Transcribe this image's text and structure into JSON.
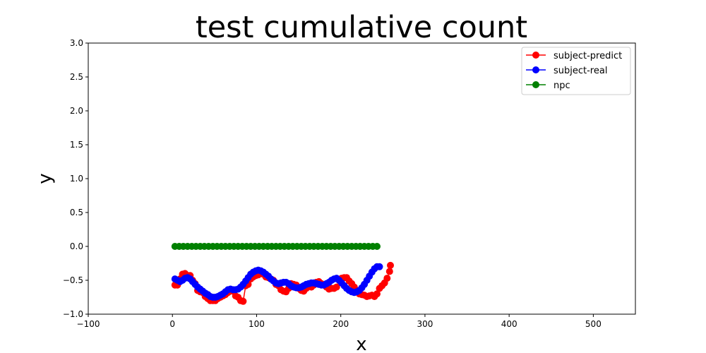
{
  "chart_data": {
    "type": "line",
    "title": "test cumulative count",
    "xlabel": "x",
    "ylabel": "y",
    "xlim": [
      -100,
      550
    ],
    "ylim": [
      -1.0,
      3.0
    ],
    "xticks": [
      "−100",
      "0",
      "100",
      "200",
      "300",
      "400",
      "500"
    ],
    "yticks": [
      "−1.0",
      "−0.5",
      "0.0",
      "0.5",
      "1.0",
      "1.5",
      "2.0",
      "2.5",
      "3.0"
    ],
    "grid": false,
    "legend_position": "top-right",
    "series": [
      {
        "name": "subject-predict",
        "color": "#ff0000",
        "marker": "circle",
        "x": [
          3,
          6,
          9,
          12,
          15,
          18,
          21,
          24,
          27,
          30,
          33,
          36,
          39,
          42,
          45,
          48,
          51,
          54,
          57,
          60,
          63,
          66,
          69,
          72,
          75,
          78,
          81,
          84,
          87,
          90,
          93,
          96,
          99,
          102,
          105,
          108,
          111,
          114,
          117,
          120,
          123,
          126,
          129,
          132,
          135,
          138,
          141,
          144,
          147,
          150,
          153,
          156,
          159,
          162,
          165,
          168,
          171,
          174,
          177,
          180,
          183,
          186,
          189,
          192,
          195,
          198,
          201,
          204,
          207,
          210,
          213,
          216,
          219,
          222,
          225,
          228,
          231,
          234,
          237,
          240,
          243,
          246,
          249,
          252,
          255,
          258,
          259
        ],
        "y": [
          -0.57,
          -0.57,
          -0.48,
          -0.41,
          -0.4,
          -0.43,
          -0.43,
          -0.5,
          -0.55,
          -0.65,
          -0.67,
          -0.68,
          -0.74,
          -0.77,
          -0.8,
          -0.8,
          -0.8,
          -0.77,
          -0.75,
          -0.73,
          -0.71,
          -0.68,
          -0.66,
          -0.66,
          -0.73,
          -0.75,
          -0.8,
          -0.81,
          -0.58,
          -0.56,
          -0.48,
          -0.45,
          -0.43,
          -0.42,
          -0.4,
          -0.41,
          -0.45,
          -0.46,
          -0.48,
          -0.5,
          -0.56,
          -0.58,
          -0.64,
          -0.66,
          -0.67,
          -0.62,
          -0.55,
          -0.56,
          -0.57,
          -0.62,
          -0.65,
          -0.66,
          -0.62,
          -0.58,
          -0.6,
          -0.57,
          -0.53,
          -0.52,
          -0.55,
          -0.57,
          -0.6,
          -0.63,
          -0.62,
          -0.62,
          -0.6,
          -0.5,
          -0.47,
          -0.46,
          -0.46,
          -0.51,
          -0.55,
          -0.6,
          -0.66,
          -0.7,
          -0.71,
          -0.72,
          -0.74,
          -0.73,
          -0.72,
          -0.74,
          -0.7,
          -0.62,
          -0.58,
          -0.54,
          -0.47,
          -0.37,
          -0.28
        ]
      },
      {
        "name": "subject-real",
        "color": "#0000ff",
        "marker": "circle",
        "x": [
          3,
          6,
          9,
          12,
          15,
          18,
          21,
          24,
          27,
          30,
          33,
          36,
          39,
          42,
          45,
          48,
          51,
          54,
          57,
          60,
          63,
          66,
          69,
          72,
          75,
          78,
          81,
          84,
          87,
          90,
          93,
          96,
          99,
          102,
          105,
          108,
          111,
          114,
          117,
          120,
          123,
          126,
          129,
          132,
          135,
          138,
          141,
          144,
          147,
          150,
          153,
          156,
          159,
          162,
          165,
          168,
          171,
          174,
          177,
          180,
          183,
          186,
          189,
          192,
          195,
          198,
          201,
          204,
          207,
          210,
          213,
          216,
          219,
          222,
          225,
          228,
          231,
          234,
          237,
          240,
          243,
          246
        ],
        "y": [
          -0.48,
          -0.5,
          -0.52,
          -0.5,
          -0.47,
          -0.46,
          -0.48,
          -0.52,
          -0.56,
          -0.6,
          -0.63,
          -0.66,
          -0.69,
          -0.71,
          -0.74,
          -0.75,
          -0.75,
          -0.74,
          -0.72,
          -0.7,
          -0.67,
          -0.64,
          -0.63,
          -0.64,
          -0.64,
          -0.63,
          -0.6,
          -0.56,
          -0.51,
          -0.46,
          -0.41,
          -0.38,
          -0.36,
          -0.35,
          -0.36,
          -0.38,
          -0.41,
          -0.44,
          -0.48,
          -0.51,
          -0.54,
          -0.55,
          -0.54,
          -0.53,
          -0.53,
          -0.55,
          -0.58,
          -0.6,
          -0.61,
          -0.61,
          -0.6,
          -0.58,
          -0.56,
          -0.55,
          -0.54,
          -0.54,
          -0.55,
          -0.56,
          -0.57,
          -0.57,
          -0.55,
          -0.53,
          -0.5,
          -0.48,
          -0.47,
          -0.5,
          -0.54,
          -0.58,
          -0.62,
          -0.65,
          -0.67,
          -0.68,
          -0.67,
          -0.65,
          -0.61,
          -0.56,
          -0.5,
          -0.44,
          -0.38,
          -0.33,
          -0.3,
          -0.3
        ]
      },
      {
        "name": "npc",
        "color": "#008000",
        "marker": "circle",
        "x": [
          3,
          8,
          13,
          18,
          23,
          28,
          33,
          38,
          43,
          48,
          53,
          58,
          63,
          68,
          73,
          78,
          83,
          88,
          93,
          98,
          103,
          108,
          113,
          118,
          123,
          128,
          133,
          138,
          143,
          148,
          153,
          158,
          163,
          168,
          173,
          178,
          183,
          188,
          193,
          198,
          203,
          208,
          213,
          218,
          223,
          228,
          233,
          238,
          243
        ],
        "y": [
          0,
          0,
          0,
          0,
          0,
          0,
          0,
          0,
          0,
          0,
          0,
          0,
          0,
          0,
          0,
          0,
          0,
          0,
          0,
          0,
          0,
          0,
          0,
          0,
          0,
          0,
          0,
          0,
          0,
          0,
          0,
          0,
          0,
          0,
          0,
          0,
          0,
          0,
          0,
          0,
          0,
          0,
          0,
          0,
          0,
          0,
          0,
          0,
          0
        ]
      }
    ]
  }
}
